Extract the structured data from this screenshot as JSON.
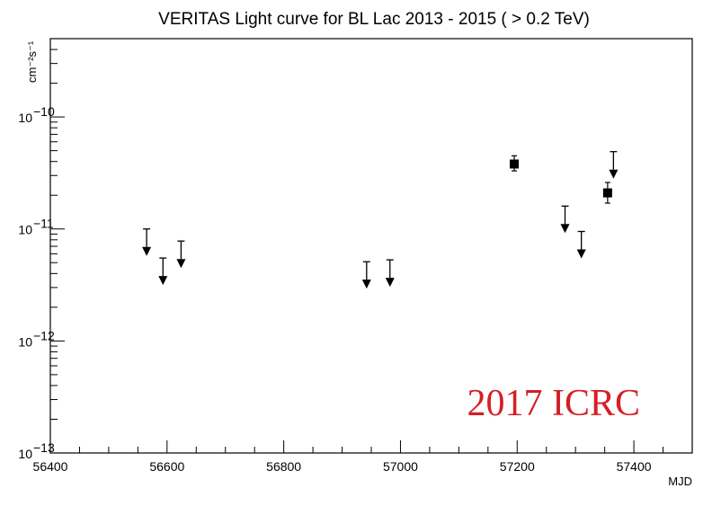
{
  "chart_data": {
    "type": "scatter",
    "title": "VERITAS Light curve for BL Lac 2013 - 2015 ( > 0.2 TeV)",
    "xlabel": "MJD",
    "ylabel": "cm⁻²s⁻¹",
    "xlim": [
      56400,
      57500
    ],
    "ylim": [
      1e-13,
      5e-10
    ],
    "yscale": "log",
    "grid": false,
    "x_ticks": [
      56400,
      56600,
      56800,
      57000,
      57200,
      57400
    ],
    "x_tick_labels": [
      "56400",
      "56600",
      "56800",
      "57000",
      "57200",
      "57400"
    ],
    "y_ticks": [
      {
        "value": 1e-13,
        "mantissa": "10",
        "exponent": "−13"
      },
      {
        "value": 1e-12,
        "mantissa": "10",
        "exponent": "−12"
      },
      {
        "value": 1e-11,
        "mantissa": "10",
        "exponent": "−11"
      },
      {
        "value": 1e-10,
        "mantissa": "10",
        "exponent": "−10"
      }
    ],
    "upper_limits": [
      {
        "x": 56565,
        "y": 1e-11
      },
      {
        "x": 56593,
        "y": 5.5e-12
      },
      {
        "x": 56624,
        "y": 7.8e-12
      },
      {
        "x": 56942,
        "y": 5.1e-12
      },
      {
        "x": 56982,
        "y": 5.3e-12
      },
      {
        "x": 57282,
        "y": 1.6e-11
      },
      {
        "x": 57310,
        "y": 9.5e-12
      },
      {
        "x": 57365,
        "y": 4.9e-11
      }
    ],
    "detections": [
      {
        "x": 57195,
        "y": 3.8e-11,
        "ylow": 3.3e-11,
        "yhigh": 4.5e-11
      },
      {
        "x": 57355,
        "y": 2.1e-11,
        "ylow": 1.7e-11,
        "yhigh": 2.6e-11
      }
    ]
  },
  "watermark": "2017 ICRC"
}
